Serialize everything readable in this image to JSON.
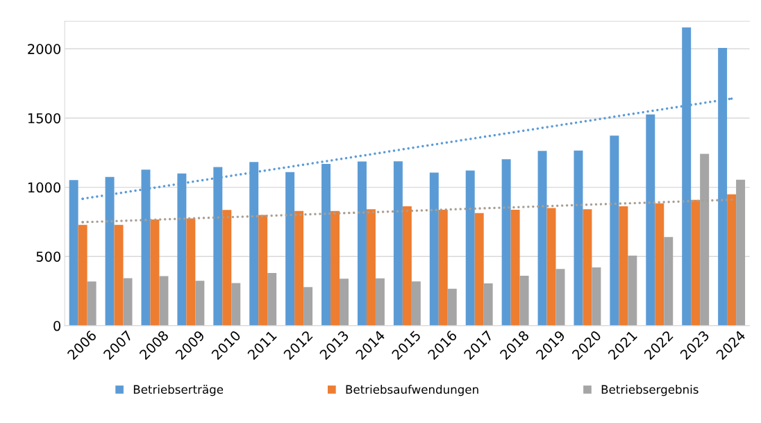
{
  "chart_data": {
    "type": "bar",
    "categories": [
      "2006",
      "2007",
      "2008",
      "2009",
      "2010",
      "2011",
      "2012",
      "2013",
      "2014",
      "2015",
      "2016",
      "2017",
      "2018",
      "2019",
      "2020",
      "2021",
      "2022",
      "2023",
      "2024"
    ],
    "series": [
      {
        "name": "Betriebserträge",
        "color": "#5b9bd5",
        "values": [
          1052,
          1074,
          1127,
          1100,
          1146,
          1183,
          1110,
          1169,
          1186,
          1188,
          1106,
          1121,
          1202,
          1263,
          1265,
          1373,
          1526,
          2154,
          2007
        ]
      },
      {
        "name": "Betriebsaufwendungen",
        "color": "#ed7d31",
        "values": [
          729,
          728,
          767,
          775,
          836,
          800,
          829,
          829,
          841,
          863,
          838,
          814,
          838,
          850,
          841,
          863,
          884,
          909,
          949
        ]
      },
      {
        "name": "Betriebsergebnis",
        "color": "#a5a5a5",
        "values": [
          320,
          343,
          359,
          325,
          308,
          381,
          279,
          340,
          342,
          320,
          267,
          306,
          361,
          410,
          421,
          506,
          641,
          1241,
          1055
        ]
      },
      {
        "type": "line",
        "color": "#5b9bd5",
        "line_style": "dotted",
        "values": [
          917,
          957,
          997,
          1038,
          1078,
          1118,
          1158,
          1198,
          1238,
          1279,
          1319,
          1359,
          1399,
          1439,
          1479,
          1520,
          1560,
          1600,
          1640
        ]
      },
      {
        "type": "line",
        "color": "#a89f94",
        "line_style": "dotted",
        "values": [
          748,
          757,
          766,
          775,
          784,
          793,
          802,
          811,
          820,
          829,
          838,
          847,
          856,
          865,
          874,
          883,
          892,
          901,
          910
        ]
      }
    ],
    "ylim": [
      0,
      2200
    ],
    "yticks": [
      0,
      500,
      1000,
      1500,
      2000
    ],
    "grid": "y",
    "legend": "bottom"
  }
}
